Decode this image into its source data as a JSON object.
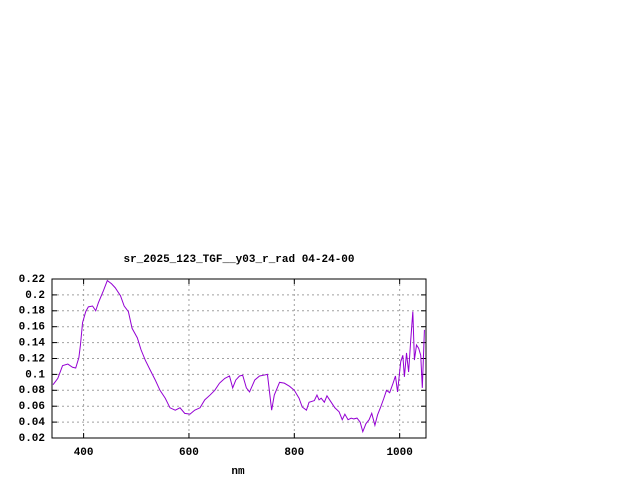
{
  "chart_data": {
    "type": "line",
    "title": "sr_2025_123_TGF__y03_r_rad 04-24-00",
    "x_label": "nm",
    "xlim": [
      340,
      1050
    ],
    "ylim": [
      0.02,
      0.22
    ],
    "xticks": [
      400,
      600,
      800,
      1000
    ],
    "yticks": [
      0.02,
      0.04,
      0.06,
      0.08,
      0.1,
      0.12,
      0.14,
      0.16,
      0.18,
      0.2,
      0.22
    ],
    "grid": true,
    "series": [
      {
        "color": "#9400d3",
        "x": [
          342,
          351,
          360,
          370,
          379,
          385,
          391,
          394,
          398,
          404,
          409,
          417,
          423,
          428,
          438,
          445,
          453,
          460,
          470,
          477,
          485,
          492,
          502,
          509,
          517,
          526,
          536,
          545,
          555,
          564,
          574,
          583,
          592,
          602,
          611,
          621,
          630,
          640,
          649,
          658,
          668,
          677,
          683,
          689,
          696,
          702,
          709,
          715,
          725,
          734,
          742,
          749,
          757,
          762,
          772,
          781,
          791,
          800,
          809,
          815,
          823,
          828,
          838,
          843,
          847,
          851,
          857,
          862,
          866,
          872,
          877,
          885,
          891,
          896,
          902,
          908,
          913,
          919,
          925,
          930,
          936,
          942,
          947,
          953,
          958,
          964,
          970,
          975,
          981,
          987,
          992,
          996,
          1002,
          1006,
          1009,
          1013,
          1017,
          1021,
          1025,
          1028,
          1032,
          1036,
          1040,
          1043,
          1047
        ],
        "values": [
          0.087,
          0.095,
          0.111,
          0.113,
          0.109,
          0.108,
          0.121,
          0.137,
          0.165,
          0.179,
          0.185,
          0.186,
          0.18,
          0.19,
          0.206,
          0.218,
          0.214,
          0.209,
          0.199,
          0.186,
          0.179,
          0.158,
          0.146,
          0.131,
          0.118,
          0.106,
          0.093,
          0.08,
          0.07,
          0.058,
          0.055,
          0.058,
          0.051,
          0.05,
          0.055,
          0.058,
          0.068,
          0.074,
          0.08,
          0.089,
          0.095,
          0.098,
          0.083,
          0.093,
          0.098,
          0.099,
          0.083,
          0.078,
          0.093,
          0.098,
          0.099,
          0.1,
          0.055,
          0.074,
          0.09,
          0.089,
          0.085,
          0.08,
          0.07,
          0.059,
          0.055,
          0.065,
          0.067,
          0.074,
          0.068,
          0.07,
          0.065,
          0.073,
          0.069,
          0.063,
          0.058,
          0.053,
          0.043,
          0.05,
          0.043,
          0.045,
          0.044,
          0.045,
          0.04,
          0.028,
          0.038,
          0.043,
          0.051,
          0.036,
          0.049,
          0.059,
          0.07,
          0.08,
          0.077,
          0.088,
          0.098,
          0.078,
          0.116,
          0.124,
          0.097,
          0.127,
          0.103,
          0.143,
          0.179,
          0.118,
          0.137,
          0.133,
          0.124,
          0.083,
          0.156
        ]
      }
    ]
  }
}
